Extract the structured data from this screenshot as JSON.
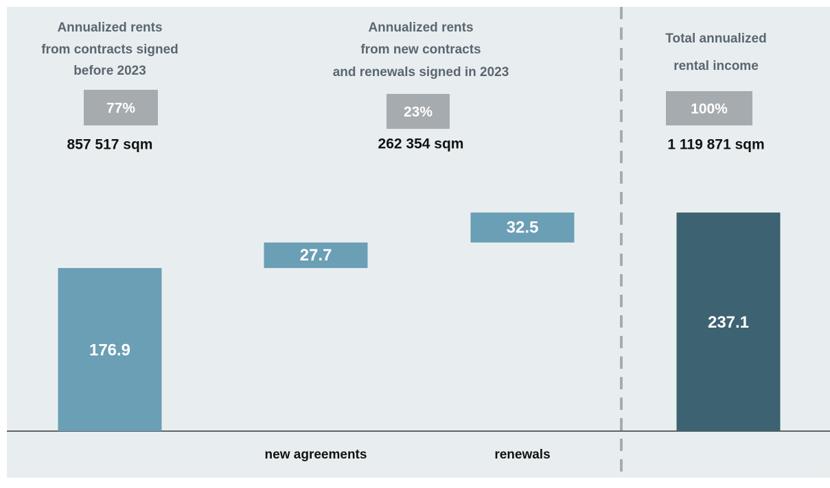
{
  "chart_data": {
    "type": "waterfall",
    "categories": [
      null,
      "new agreements",
      "renewals",
      null
    ],
    "values": [
      176.9,
      27.7,
      32.5,
      237.1
    ],
    "measure": [
      "absolute",
      "relative",
      "relative",
      "total"
    ],
    "colors": [
      "#6a9fb5",
      "#6a9fb5",
      "#6a9fb5",
      "#3d6272"
    ],
    "groups": [
      {
        "title": [
          "Annualized rents",
          "from contracts signed",
          "before 2023"
        ],
        "share": "77%",
        "area": "857 517 sqm"
      },
      {
        "title": [
          "Annualized rents",
          "from new contracts",
          "and renewals signed in 2023"
        ],
        "share": "23%",
        "area": "262 354 sqm"
      },
      {
        "title": [
          "Total annualized",
          "rental income"
        ],
        "share": "100%",
        "area": "1 119 871 sqm"
      }
    ]
  }
}
